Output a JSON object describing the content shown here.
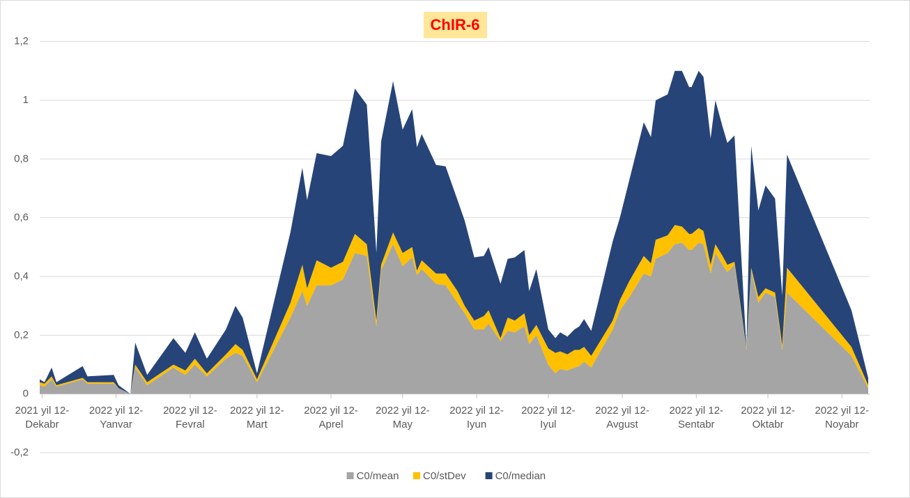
{
  "chart_data": {
    "type": "stacked-area",
    "title": "ChIR-6",
    "x": [
      "2021-12-11",
      "2021-12-13",
      "2021-12-16",
      "2021-12-18",
      "2021-12-29",
      "2021-12-31",
      "2022-01-11",
      "2022-01-13",
      "2022-01-18",
      "2022-01-20",
      "2022-01-25",
      "2022-02-05",
      "2022-02-10",
      "2022-02-14",
      "2022-02-19",
      "2022-02-27",
      "2022-03-03",
      "2022-03-06",
      "2022-03-12",
      "2022-03-26",
      "2022-03-31",
      "2022-04-02",
      "2022-04-06",
      "2022-04-12",
      "2022-04-17",
      "2022-04-22",
      "2022-04-27",
      "2022-05-01",
      "2022-05-03",
      "2022-05-08",
      "2022-05-12",
      "2022-05-16",
      "2022-05-18",
      "2022-05-20",
      "2022-05-26",
      "2022-05-30",
      "2022-06-04",
      "2022-06-07",
      "2022-06-11",
      "2022-06-15",
      "2022-06-17",
      "2022-06-22",
      "2022-06-25",
      "2022-06-28",
      "2022-07-02",
      "2022-07-04",
      "2022-07-07",
      "2022-07-12",
      "2022-07-15",
      "2022-07-17",
      "2022-07-20",
      "2022-07-23",
      "2022-07-25",
      "2022-07-27",
      "2022-07-30",
      "2022-08-08",
      "2022-08-11",
      "2022-08-15",
      "2022-08-21",
      "2022-08-24",
      "2022-08-26",
      "2022-08-31",
      "2022-09-03",
      "2022-09-06",
      "2022-09-09",
      "2022-09-10",
      "2022-09-13",
      "2022-09-15",
      "2022-09-18",
      "2022-09-20",
      "2022-09-23",
      "2022-09-25",
      "2022-09-28",
      "2022-10-03",
      "2022-10-05",
      "2022-10-08",
      "2022-10-11",
      "2022-10-15",
      "2022-10-18",
      "2022-10-20",
      "2022-11-16",
      "2022-11-23"
    ],
    "series": [
      {
        "name": "C0/mean",
        "color": "#a5a5a5",
        "values": [
          0.03,
          0.025,
          0.05,
          0.025,
          0.05,
          0.035,
          0.035,
          0.02,
          0,
          0.09,
          0.03,
          0.09,
          0.065,
          0.1,
          0.06,
          0.12,
          0.14,
          0.13,
          0.04,
          0.26,
          0.35,
          0.3,
          0.37,
          0.37,
          0.39,
          0.48,
          0.47,
          0.23,
          0.42,
          0.51,
          0.435,
          0.465,
          0.405,
          0.425,
          0.375,
          0.37,
          0.31,
          0.275,
          0.22,
          0.22,
          0.24,
          0.18,
          0.215,
          0.21,
          0.23,
          0.17,
          0.2,
          0.1,
          0.07,
          0.085,
          0.08,
          0.09,
          0.095,
          0.11,
          0.09,
          0.22,
          0.285,
          0.33,
          0.41,
          0.4,
          0.46,
          0.48,
          0.51,
          0.515,
          0.49,
          0.49,
          0.515,
          0.51,
          0.41,
          0.48,
          0.44,
          0.415,
          0.44,
          0.15,
          0.42,
          0.31,
          0.345,
          0.33,
          0.15,
          0.345,
          0.13,
          0.02
        ]
      },
      {
        "name": "C0/stDev",
        "color": "#ffc000",
        "values": [
          0.01,
          0.01,
          0.01,
          0.005,
          0.005,
          0.005,
          0.005,
          0,
          0,
          0.01,
          0.01,
          0.01,
          0.015,
          0.02,
          0.01,
          0.015,
          0.03,
          0.02,
          0.01,
          0.05,
          0.09,
          0.06,
          0.085,
          0.06,
          0.06,
          0.065,
          0.04,
          0.02,
          0.02,
          0.04,
          0.045,
          0.035,
          0.015,
          0.03,
          0.035,
          0.04,
          0.04,
          0.025,
          0.03,
          0.045,
          0.045,
          0.01,
          0.045,
          0.04,
          0.045,
          0.03,
          0.035,
          0.055,
          0.07,
          0.06,
          0.055,
          0.06,
          0.055,
          0.05,
          0.04,
          0.03,
          0.035,
          0.055,
          0.06,
          0.045,
          0.065,
          0.06,
          0.065,
          0.055,
          0.055,
          0.055,
          0.05,
          0.045,
          0.03,
          0.03,
          0.03,
          0.025,
          0.01,
          0.005,
          0.01,
          0.02,
          0.015,
          0.015,
          0.015,
          0.085,
          0.03,
          0.01
        ]
      },
      {
        "name": "C0/median",
        "color": "#264478",
        "values": [
          0.01,
          0.005,
          0.03,
          0.01,
          0.04,
          0.02,
          0.025,
          0.01,
          0,
          0.075,
          0.025,
          0.09,
          0.06,
          0.09,
          0.05,
          0.085,
          0.13,
          0.11,
          0.02,
          0.24,
          0.33,
          0.3,
          0.365,
          0.38,
          0.395,
          0.495,
          0.475,
          0.23,
          0.42,
          0.515,
          0.42,
          0.47,
          0.42,
          0.43,
          0.37,
          0.365,
          0.31,
          0.29,
          0.215,
          0.205,
          0.215,
          0.185,
          0.2,
          0.215,
          0.215,
          0.15,
          0.19,
          0.065,
          0.05,
          0.065,
          0.06,
          0.07,
          0.08,
          0.095,
          0.085,
          0.27,
          0.28,
          0.345,
          0.455,
          0.43,
          0.475,
          0.48,
          0.525,
          0.53,
          0.5,
          0.5,
          0.535,
          0.525,
          0.43,
          0.49,
          0.44,
          0.415,
          0.43,
          0,
          0.415,
          0.295,
          0.35,
          0.32,
          0.17,
          0.385,
          0.125,
          0.025
        ]
      }
    ],
    "xlim": [
      "2021-12-11",
      "2022-11-23"
    ],
    "xticks": [
      {
        "value": "2021-12-12",
        "label": "2021 yil 12-Dekabr"
      },
      {
        "value": "2022-01-12",
        "label": "2022 yil 12-Yanvar"
      },
      {
        "value": "2022-02-12",
        "label": "2022 yil 12-Fevral"
      },
      {
        "value": "2022-03-12",
        "label": "2022 yil 12-Mart"
      },
      {
        "value": "2022-04-12",
        "label": "2022 yil 12-Aprel"
      },
      {
        "value": "2022-05-12",
        "label": "2022 yil 12-May"
      },
      {
        "value": "2022-06-12",
        "label": "2022 yil 12-Iyun"
      },
      {
        "value": "2022-07-12",
        "label": "2022 yil 12-Iyul"
      },
      {
        "value": "2022-08-12",
        "label": "2022 yil 12-Avgust"
      },
      {
        "value": "2022-09-12",
        "label": "2022 yil 12-Sentabr"
      },
      {
        "value": "2022-10-12",
        "label": "2022 yil 12-Oktabr"
      },
      {
        "value": "2022-11-12",
        "label": "2022 yil 12-Noyabr"
      }
    ],
    "ylim": [
      -0.2,
      1.2
    ],
    "yticks": [
      {
        "value": -0.2,
        "label": "-0,2"
      },
      0,
      {
        "value": 0.2,
        "label": "0,2"
      },
      {
        "value": 0.4,
        "label": "0,4"
      },
      {
        "value": 0.6,
        "label": "0,6"
      },
      {
        "value": 0.8,
        "label": "0,8"
      },
      1,
      {
        "value": 1.2,
        "label": "1,2"
      }
    ],
    "grid": true,
    "legend": "bottom"
  }
}
